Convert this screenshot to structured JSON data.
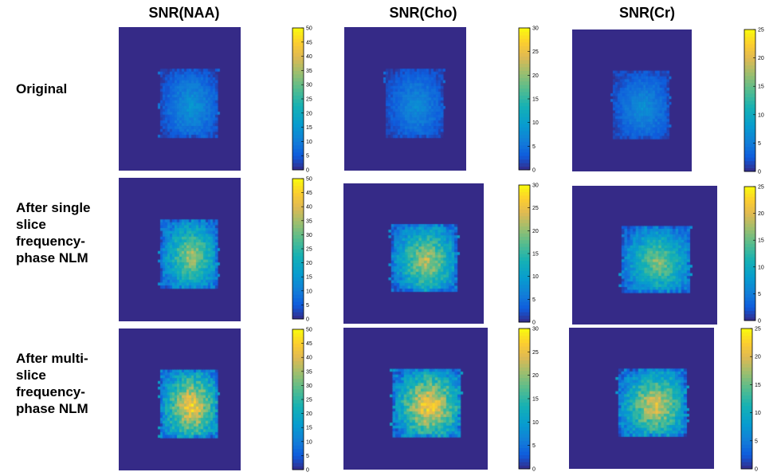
{
  "columns": [
    "SNR(NAA)",
    "SNR(Cho)",
    "SNR(Cr)"
  ],
  "rows": [
    {
      "label_lines": [
        "Original"
      ]
    },
    {
      "label_lines": [
        "After single",
        "slice",
        "frequency-",
        "phase NLM"
      ]
    },
    {
      "label_lines": [
        "After multi-",
        "slice",
        "frequency-",
        "phase NLM"
      ]
    }
  ],
  "colorbars": [
    {
      "max": 50,
      "ticks": [
        "0",
        "5",
        "10",
        "15",
        "20",
        "25",
        "30",
        "35",
        "40",
        "45",
        "50"
      ]
    },
    {
      "max": 30,
      "ticks": [
        "0",
        "5",
        "10",
        "15",
        "20",
        "25",
        "30"
      ]
    },
    {
      "max": 25,
      "ticks": [
        "0",
        "5",
        "10",
        "15",
        "20",
        "25"
      ]
    }
  ],
  "chart_data": [
    {
      "type": "heatmap",
      "title": "SNR(NAA)",
      "row": "Original",
      "colorbar_range": [
        0,
        50
      ],
      "peak_snr": 15,
      "background_value": 0
    },
    {
      "type": "heatmap",
      "title": "SNR(Cho)",
      "row": "Original",
      "colorbar_range": [
        0,
        30
      ],
      "peak_snr": 8,
      "background_value": 0
    },
    {
      "type": "heatmap",
      "title": "SNR(Cr)",
      "row": "Original",
      "colorbar_range": [
        0,
        25
      ],
      "peak_snr": 7,
      "background_value": 0
    },
    {
      "type": "heatmap",
      "title": "SNR(NAA)",
      "row": "After single slice frequency-phase NLM",
      "colorbar_range": [
        0,
        50
      ],
      "peak_snr": 36,
      "background_value": 0
    },
    {
      "type": "heatmap",
      "title": "SNR(Cho)",
      "row": "After single slice frequency-phase NLM",
      "colorbar_range": [
        0,
        30
      ],
      "peak_snr": 23,
      "background_value": 0
    },
    {
      "type": "heatmap",
      "title": "SNR(Cr)",
      "row": "After single slice frequency-phase NLM",
      "colorbar_range": [
        0,
        25
      ],
      "peak_snr": 17,
      "background_value": 0
    },
    {
      "type": "heatmap",
      "title": "SNR(NAA)",
      "row": "After multi-slice frequency-phase NLM",
      "colorbar_range": [
        0,
        50
      ],
      "peak_snr": 46,
      "background_value": 0
    },
    {
      "type": "heatmap",
      "title": "SNR(Cho)",
      "row": "After multi-slice frequency-phase NLM",
      "colorbar_range": [
        0,
        30
      ],
      "peak_snr": 28,
      "background_value": 0
    },
    {
      "type": "heatmap",
      "title": "SNR(Cr)",
      "row": "After multi-slice frequency-phase NLM",
      "colorbar_range": [
        0,
        25
      ],
      "peak_snr": 21,
      "background_value": 0
    }
  ]
}
